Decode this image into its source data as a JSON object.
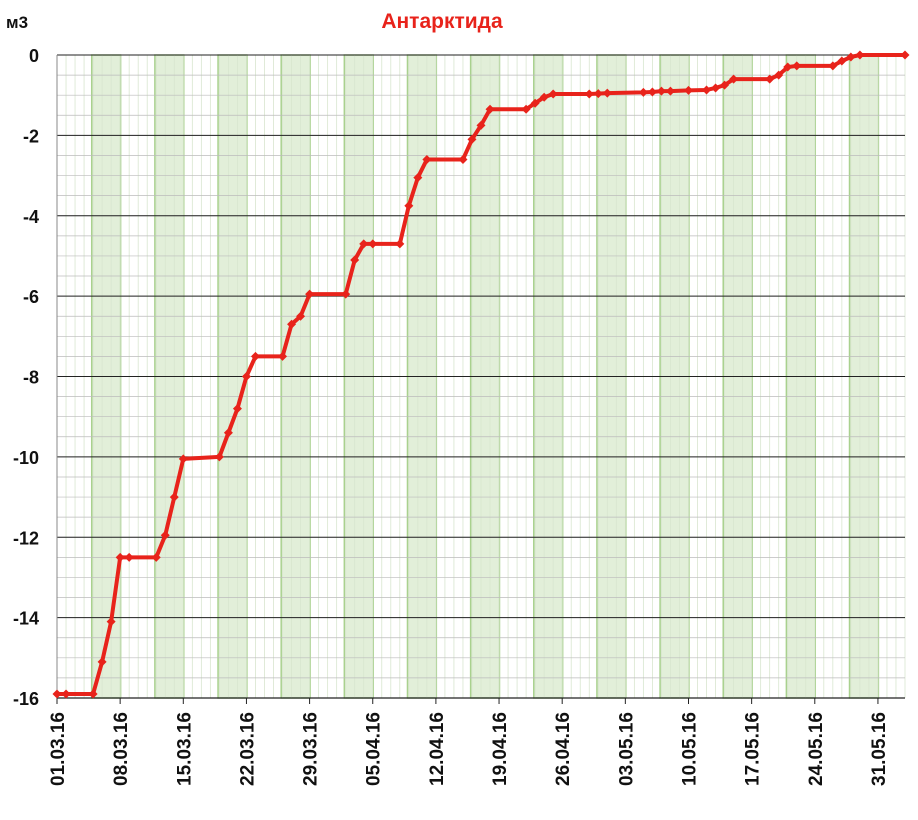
{
  "chart_data": {
    "type": "line",
    "title": "Антарктида",
    "ylabel": "м3",
    "x": [
      "01.03.16",
      "02.03.16",
      "05.03.16",
      "06.03.16",
      "07.03.16",
      "08.03.16",
      "09.03.16",
      "12.03.16",
      "13.03.16",
      "14.03.16",
      "15.03.16",
      "19.03.16",
      "20.03.16",
      "21.03.16",
      "22.03.16",
      "23.03.16",
      "26.03.16",
      "27.03.16",
      "28.03.16",
      "29.03.16",
      "02.04.16",
      "03.04.16",
      "04.04.16",
      "05.04.16",
      "08.04.16",
      "09.04.16",
      "10.04.16",
      "11.04.16",
      "15.04.16",
      "16.04.16",
      "17.04.16",
      "18.04.16",
      "22.04.16",
      "23.04.16",
      "24.04.16",
      "25.04.16",
      "29.04.16",
      "30.04.16",
      "01.05.16",
      "05.05.16",
      "06.05.16",
      "07.05.16",
      "08.05.16",
      "10.05.16",
      "12.05.16",
      "13.05.16",
      "14.05.16",
      "15.05.16",
      "19.05.16",
      "20.05.16",
      "21.05.16",
      "22.05.16",
      "26.05.16",
      "27.05.16",
      "28.05.16",
      "29.05.16",
      "03.06.16"
    ],
    "series": [
      {
        "name": "Антарктида",
        "color": "#e8231b",
        "values": [
          -15.9,
          -15.9,
          -15.9,
          -15.1,
          -14.1,
          -12.5,
          -12.5,
          -12.5,
          -11.95,
          -11.0,
          -10.05,
          -10.0,
          -9.4,
          -8.8,
          -8.0,
          -7.5,
          -7.5,
          -6.7,
          -6.5,
          -5.95,
          -5.95,
          -5.1,
          -4.7,
          -4.7,
          -4.7,
          -3.75,
          -3.05,
          -2.6,
          -2.6,
          -2.1,
          -1.75,
          -1.35,
          -1.35,
          -1.2,
          -1.05,
          -0.97,
          -0.97,
          -0.96,
          -0.95,
          -0.93,
          -0.92,
          -0.9,
          -0.9,
          -0.88,
          -0.87,
          -0.82,
          -0.75,
          -0.6,
          -0.6,
          -0.5,
          -0.3,
          -0.27,
          -0.27,
          -0.15,
          -0.05,
          0,
          0
        ]
      }
    ],
    "xlim": [
      "01.03.16",
      "03.06.16"
    ],
    "xticks": [
      "01.03.16",
      "08.03.16",
      "15.03.16",
      "22.03.16",
      "29.03.16",
      "05.04.16",
      "12.04.16",
      "19.04.16",
      "26.04.16",
      "03.05.16",
      "10.05.16",
      "17.05.16",
      "24.05.16",
      "31.05.16"
    ],
    "ylim": [
      -16,
      0
    ],
    "yticks": [
      -16,
      -14,
      -12,
      -10,
      -8,
      -6,
      -4,
      -2,
      0
    ],
    "grid": true
  }
}
